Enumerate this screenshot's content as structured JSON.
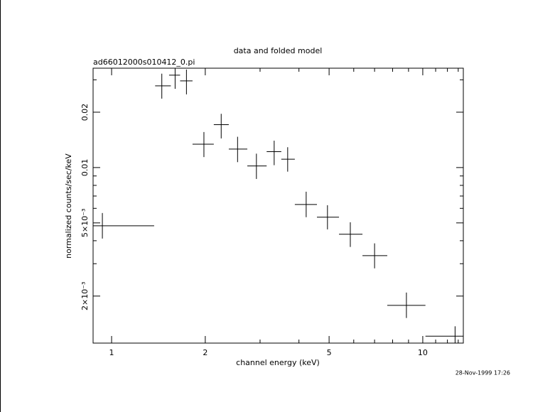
{
  "chart_data": {
    "type": "errorbar",
    "title": "data and folded model",
    "subtitle": "ad66012000s010412_0.pi",
    "x_label": "channel energy (keV)",
    "y_label": "normalized counts/sec/keV",
    "timestamp": "28-Nov-1999 17:26",
    "log_x": true,
    "log_y": true,
    "color": "#000000",
    "xlim": [
      0.872,
      13.5
    ],
    "ylim": [
      0.00111,
      0.0347
    ],
    "xticks": [
      1,
      2,
      5,
      10
    ],
    "xminorticks": [
      3,
      4,
      6,
      7,
      8,
      9,
      11,
      12,
      13
    ],
    "yticks": [
      0.02,
      0.01,
      {
        "value": 0.005,
        "label": "5×10⁻³"
      },
      {
        "value": 0.002,
        "label": "2×10⁻³"
      }
    ],
    "yminorticks": [
      0.03,
      0.009,
      0.008,
      0.007,
      0.006,
      0.004,
      0.003
    ],
    "x": [
      0.934,
      1.45,
      1.6,
      1.74,
      1.98,
      2.25,
      2.54,
      2.92,
      3.33,
      3.68,
      4.22,
      4.94,
      5.85,
      7.0,
      8.86,
      12.7
    ],
    "xmin": [
      0.872,
      1.38,
      1.53,
      1.66,
      1.82,
      2.13,
      2.38,
      2.73,
      3.15,
      3.51,
      3.88,
      4.57,
      5.38,
      6.4,
      7.69,
      10.2
    ],
    "xmax": [
      1.37,
      1.55,
      1.66,
      1.82,
      2.13,
      2.38,
      2.73,
      3.15,
      3.51,
      3.88,
      4.57,
      5.38,
      6.4,
      7.69,
      10.2,
      13.5
    ],
    "y": [
      0.00482,
      0.0278,
      0.0318,
      0.0296,
      0.0134,
      0.0171,
      0.0126,
      0.0102,
      0.0122,
      0.0111,
      0.0063,
      0.00537,
      0.00434,
      0.00332,
      0.00178,
      0.00121
    ],
    "ymin": [
      0.00411,
      0.0237,
      0.0268,
      0.025,
      0.0114,
      0.0144,
      0.0107,
      0.00867,
      0.0103,
      0.0095,
      0.00537,
      0.00461,
      0.0037,
      0.00283,
      0.00152,
      0.00111
    ],
    "ymax": [
      0.00566,
      0.0324,
      0.0347,
      0.0341,
      0.0156,
      0.0196,
      0.0147,
      0.0119,
      0.014,
      0.0129,
      0.00739,
      0.00624,
      0.00504,
      0.00387,
      0.00209,
      0.00137
    ]
  }
}
